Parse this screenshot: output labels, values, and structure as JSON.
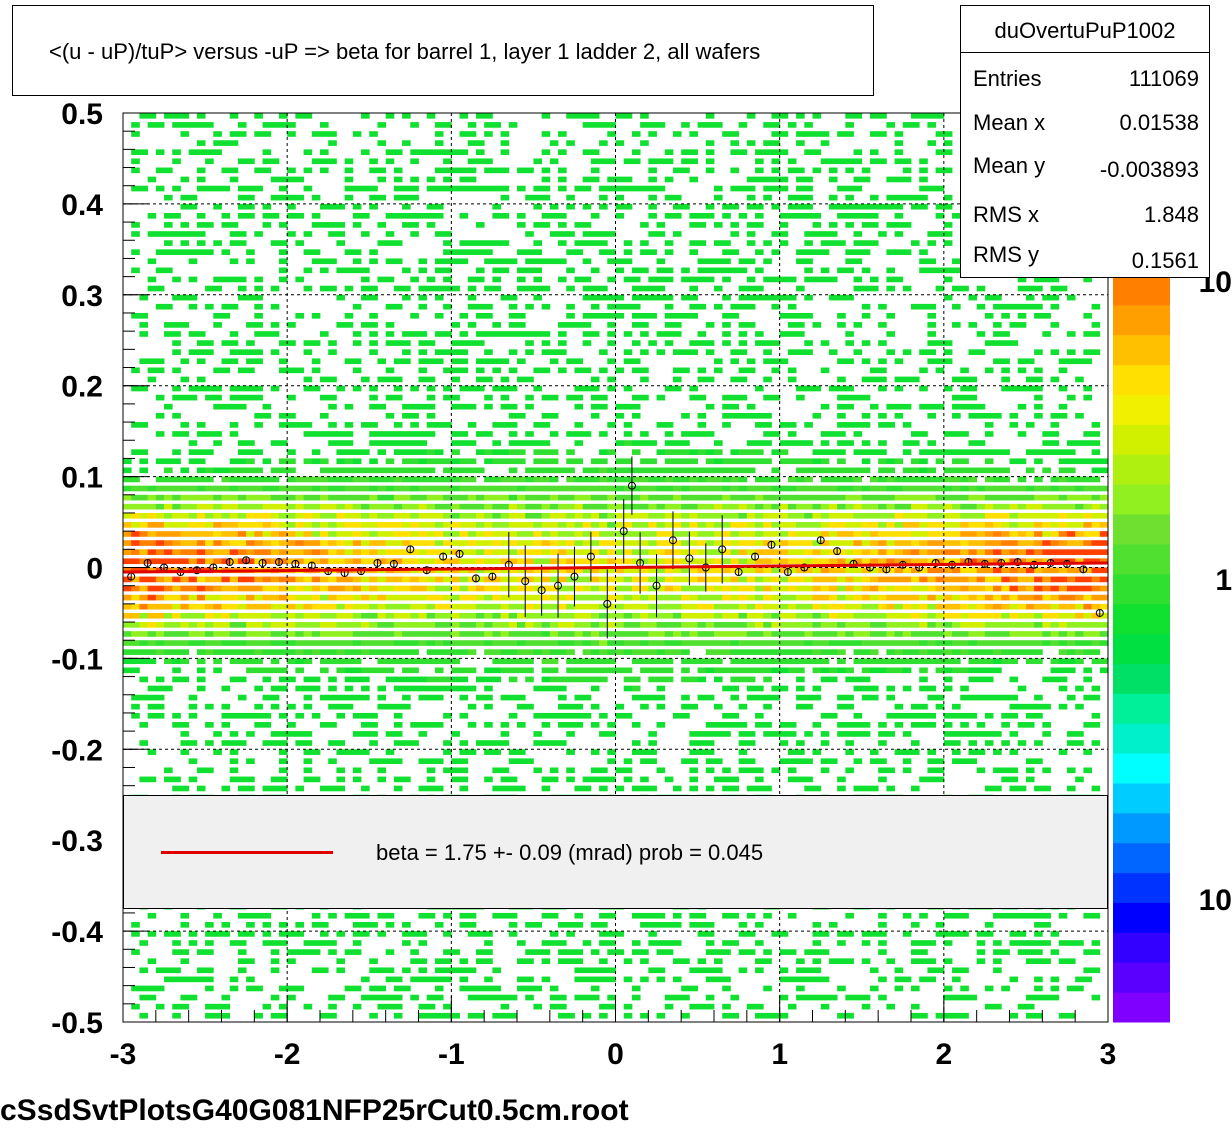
{
  "title": "<(u - uP)/tuP> versus  -uP => beta for barrel 1, layer 1 ladder 2, all wafers",
  "footer": "cSsdSvtPlotsG40G081NFP25rCut0.5cm.root",
  "stats": {
    "name": "duOvertuPuP1002",
    "rows": [
      {
        "label": "Entries",
        "value": "111069"
      },
      {
        "label": "Mean x",
        "value": "0.01538"
      },
      {
        "label": "Mean y",
        "value": "-0.003893"
      },
      {
        "label": "RMS x",
        "value": "1.848"
      },
      {
        "label": "RMS y",
        "value": "0.1561"
      }
    ]
  },
  "legend": {
    "line_color": "#e00000",
    "text": "beta =    1.75 +-  0.09 (mrad) prob = 0.045"
  },
  "palette": {
    "labels": [
      "10",
      "1",
      "10"
    ],
    "colors": [
      "#7f00ff",
      "#5a00ff",
      "#3300ff",
      "#0000ff",
      "#0033ff",
      "#0066ff",
      "#0099ff",
      "#00ccff",
      "#00ffff",
      "#00f0cc",
      "#00f099",
      "#00e066",
      "#00e040",
      "#10e030",
      "#30e030",
      "#50e030",
      "#70e030",
      "#90f020",
      "#b0f010",
      "#d0f000",
      "#f0f000",
      "#ffe000",
      "#ffc000",
      "#ff9f00",
      "#ff7f00"
    ]
  },
  "chart_data": {
    "type": "scatter",
    "title": "<(u - uP)/tuP> versus  -uP => beta for barrel 1, layer 1 ladder 2, all wafers",
    "xlabel": "",
    "ylabel": "",
    "xlim": [
      -3,
      3
    ],
    "ylim": [
      -0.5,
      0.5
    ],
    "x_ticks": [
      "-3",
      "-2",
      "-1",
      "0",
      "1",
      "2",
      "3"
    ],
    "y_ticks": [
      "-0.5",
      "-0.4",
      "-0.3",
      "-0.2",
      "-0.1",
      "0",
      "0.1",
      "0.2",
      "0.3",
      "0.4",
      "0.5"
    ],
    "grid": true,
    "fit_line": {
      "x": [
        -3,
        3
      ],
      "y": [
        -0.005,
        0.005
      ],
      "color": "#e00000"
    },
    "profile_points": {
      "x": [
        -2.95,
        -2.85,
        -2.75,
        -2.65,
        -2.55,
        -2.45,
        -2.35,
        -2.25,
        -2.15,
        -2.05,
        -1.95,
        -1.85,
        -1.75,
        -1.65,
        -1.55,
        -1.45,
        -1.35,
        -1.25,
        -1.15,
        -1.05,
        -0.95,
        -0.85,
        -0.75,
        -0.65,
        -0.55,
        -0.45,
        -0.35,
        -0.25,
        -0.15,
        -0.05,
        0.05,
        0.1,
        0.15,
        0.25,
        0.35,
        0.45,
        0.55,
        0.65,
        0.75,
        0.85,
        0.95,
        1.05,
        1.15,
        1.25,
        1.35,
        1.45,
        1.55,
        1.65,
        1.75,
        1.85,
        1.95,
        2.05,
        2.15,
        2.25,
        2.35,
        2.45,
        2.55,
        2.65,
        2.75,
        2.85,
        2.95
      ],
      "y": [
        -0.01,
        0.005,
        0.0,
        -0.005,
        -0.003,
        0.0,
        0.006,
        0.008,
        0.005,
        0.006,
        0.004,
        0.002,
        -0.004,
        -0.006,
        -0.004,
        0.005,
        0.004,
        0.02,
        -0.003,
        0.012,
        0.015,
        -0.012,
        -0.01,
        0.003,
        -0.015,
        -0.025,
        -0.02,
        -0.01,
        0.012,
        -0.04,
        0.04,
        0.09,
        0.005,
        -0.02,
        0.03,
        0.01,
        0.0,
        0.02,
        -0.005,
        0.012,
        0.025,
        -0.005,
        0.0,
        0.03,
        0.018,
        0.004,
        0.0,
        -0.002,
        0.003,
        0.0,
        0.005,
        0.003,
        0.006,
        0.004,
        0.005,
        0.006,
        0.003,
        0.005,
        0.004,
        -0.002,
        -0.05
      ],
      "color": "#000000"
    }
  }
}
